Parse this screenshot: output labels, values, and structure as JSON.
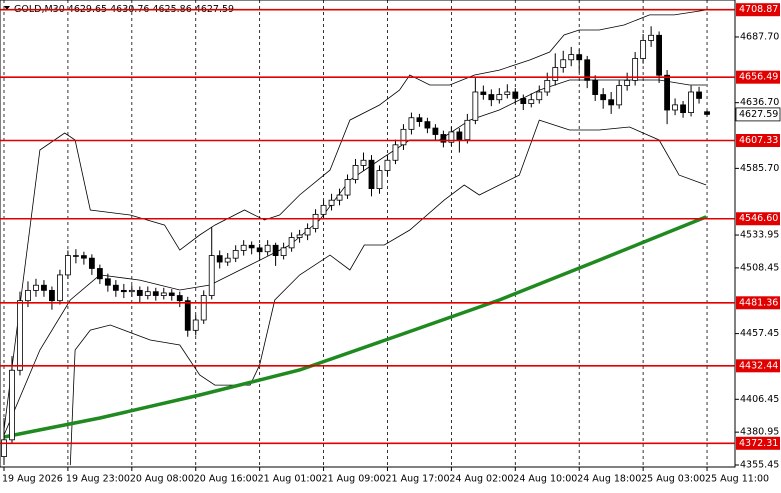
{
  "chart_data": {
    "type": "candlestick",
    "symbol": "GOLD,M30",
    "xlim": [
      -0.5,
      91.5
    ],
    "ylim": [
      4353.9,
      4716.4
    ],
    "xticks": [
      {
        "value": 0,
        "label": "19 Aug 2026"
      },
      {
        "value": 8,
        "label": "19 Aug 23:00"
      },
      {
        "value": 16,
        "label": "20 Aug 08:00"
      },
      {
        "value": 24,
        "label": "20 Aug 16:00"
      },
      {
        "value": 32,
        "label": "21 Aug 01:00"
      },
      {
        "value": 40,
        "label": "21 Aug 09:00"
      },
      {
        "value": 48,
        "label": "21 Aug 17:00"
      },
      {
        "value": 56,
        "label": "24 Aug 02:00"
      },
      {
        "value": 64,
        "label": "24 Aug 10:00"
      },
      {
        "value": 72,
        "label": "24 Aug 18:00"
      },
      {
        "value": 80,
        "label": "25 Aug 03:00"
      },
      {
        "value": 88,
        "label": "25 Aug 11:00"
      }
    ],
    "yticks": [
      4355.45,
      4380.95,
      4406.45,
      4457.45,
      4508.45,
      4533.95,
      {
        "value": 4585.7,
        "label": "4585.70"
      },
      {
        "value": 4636.7,
        "label": "4636.70"
      },
      {
        "value": 4687.7,
        "label": "4687.70"
      }
    ],
    "vgrid": true,
    "level_color": "#e00000",
    "levels": [
      4708.87,
      4656.49,
      4607.33,
      {
        "value": 4546.6,
        "label": "4546.60"
      },
      4481.36,
      4432.44,
      4372.31
    ],
    "candles": [
      [
        4362,
        4392,
        4355.5,
        4375
      ],
      [
        4375,
        4440,
        4372,
        4429
      ],
      [
        4429,
        4490,
        4425,
        4483
      ],
      [
        4483,
        4498,
        4478,
        4491
      ],
      [
        4491,
        4500,
        4486,
        4495
      ],
      [
        4495,
        4499,
        4486,
        4491
      ],
      [
        4491,
        4494,
        4476,
        4483
      ],
      [
        4483,
        4507,
        4480,
        4503
      ],
      [
        4503,
        4522,
        4500,
        4518
      ],
      [
        4518,
        4523,
        4512,
        4518
      ],
      [
        4518,
        4521,
        4511,
        4516
      ],
      [
        4516,
        4519,
        4503,
        4508
      ],
      [
        4508,
        4511,
        4496,
        4500
      ],
      [
        4500,
        4504,
        4490,
        4495
      ],
      [
        4495,
        4499,
        4486,
        4491
      ],
      [
        4491,
        4496,
        4485,
        4490
      ],
      [
        4490,
        4495,
        4486,
        4491
      ],
      [
        4491,
        4494,
        4482,
        4487
      ],
      [
        4487,
        4494,
        4484,
        4490
      ],
      [
        4490,
        4493,
        4483,
        4487
      ],
      [
        4487,
        4493,
        4484,
        4489
      ],
      [
        4489,
        4492,
        4483,
        4487
      ],
      [
        4487,
        4490,
        4478,
        4483
      ],
      [
        4483,
        4486,
        4455,
        4460
      ],
      [
        4460,
        4472,
        4456,
        4468
      ],
      [
        4468,
        4491,
        4465,
        4487
      ],
      [
        4487,
        4540,
        4484,
        4518
      ],
      [
        4518,
        4522,
        4508,
        4513
      ],
      [
        4513,
        4520,
        4510,
        4516
      ],
      [
        4516,
        4526,
        4513,
        4522
      ],
      [
        4522,
        4530,
        4518,
        4526
      ],
      [
        4526,
        4529,
        4519,
        4524
      ],
      [
        4524,
        4527,
        4515,
        4521
      ],
      [
        4521,
        4530,
        4518,
        4526
      ],
      [
        4526,
        4528,
        4510,
        4518
      ],
      [
        4518,
        4528,
        4515,
        4524
      ],
      [
        4524,
        4536,
        4521,
        4532
      ],
      [
        4532,
        4538,
        4528,
        4534
      ],
      [
        4534,
        4543,
        4530,
        4539
      ],
      [
        4539,
        4554,
        4536,
        4550
      ],
      [
        4550,
        4561,
        4546,
        4557
      ],
      [
        4557,
        4566,
        4553,
        4561
      ],
      [
        4561,
        4570,
        4557,
        4565
      ],
      [
        4565,
        4581,
        4562,
        4577
      ],
      [
        4577,
        4593,
        4574,
        4588
      ],
      [
        4588,
        4598,
        4584,
        4592
      ],
      [
        4592,
        4596,
        4564,
        4570
      ],
      [
        4570,
        4588,
        4566,
        4584
      ],
      [
        4584,
        4596,
        4580,
        4592
      ],
      [
        4592,
        4608,
        4589,
        4604
      ],
      [
        4604,
        4620,
        4600,
        4616
      ],
      [
        4616,
        4629,
        4612,
        4625
      ],
      [
        4625,
        4628,
        4618,
        4622
      ],
      [
        4622,
        4625,
        4613,
        4617
      ],
      [
        4617,
        4620,
        4608,
        4612
      ],
      [
        4612,
        4615,
        4602,
        4606
      ],
      [
        4606,
        4618,
        4603,
        4614
      ],
      [
        4614,
        4617,
        4598,
        4608
      ],
      [
        4608,
        4628,
        4605,
        4623
      ],
      [
        4623,
        4656,
        4620,
        4645
      ],
      [
        4645,
        4650,
        4639,
        4643
      ],
      [
        4643,
        4647,
        4634,
        4639
      ],
      [
        4639,
        4648,
        4636,
        4643
      ],
      [
        4643,
        4651,
        4640,
        4645
      ],
      [
        4645,
        4648,
        4636,
        4640
      ],
      [
        4640,
        4643,
        4631,
        4636
      ],
      [
        4636,
        4644,
        4633,
        4639
      ],
      [
        4639,
        4650,
        4636,
        4645
      ],
      [
        4645,
        4660,
        4642,
        4654
      ],
      [
        4654,
        4675,
        4650,
        4664
      ],
      [
        4664,
        4677,
        4660,
        4670
      ],
      [
        4670,
        4680,
        4665,
        4674
      ],
      [
        4674,
        4678,
        4660,
        4670
      ],
      [
        4670,
        4673,
        4648,
        4654
      ],
      [
        4654,
        4658,
        4638,
        4643
      ],
      [
        4643,
        4648,
        4632,
        4639
      ],
      [
        4639,
        4645,
        4628,
        4635
      ],
      [
        4635,
        4654,
        4632,
        4650
      ],
      [
        4650,
        4660,
        4646,
        4654
      ],
      [
        4654,
        4676,
        4650,
        4671
      ],
      [
        4671,
        4690,
        4667,
        4685
      ],
      [
        4685,
        4696,
        4680,
        4689
      ],
      [
        4689,
        4692,
        4652,
        4658
      ],
      [
        4658,
        4662,
        4620,
        4631
      ],
      [
        4631,
        4640,
        4627,
        4635
      ],
      [
        4635,
        4638,
        4625,
        4629
      ],
      [
        4629,
        4650,
        4626,
        4645
      ],
      [
        4645,
        4649,
        4636,
        4640
      ],
      [
        4629.65,
        4630.76,
        4625.86,
        4627.59
      ]
    ],
    "indicators": [
      {
        "color": "#000000",
        "width": 0.8,
        "x": [
          0,
          4.5,
          7.6,
          8.9,
          10.8,
          15.8,
          20.1,
          22,
          24.5,
          26.4,
          30.1,
          32.6,
          34.5,
          37,
          40.8,
          43.3,
          47,
          49.5,
          50.8,
          53.3,
          55.8,
          58.9,
          62,
          65.8,
          68.3,
          70.1,
          72,
          74.5,
          77.6,
          80.8,
          83.9,
          87.9
        ],
        "values": [
          4382.6,
          4600,
          4613.2,
          4607.7,
          4553.4,
          4549.5,
          4541.7,
          4522.3,
          4534,
          4541.7,
          4553.4,
          4545.6,
          4549.5,
          4565,
          4584.4,
          4623.2,
          4634.9,
          4646.5,
          4658.2,
          4650.4,
          4650.4,
          4658.2,
          4662,
          4669.8,
          4676,
          4689.2,
          4693.1,
          4693.1,
          4697,
          4704.8,
          4704.8,
          4708.6
        ]
      },
      {
        "color": "#000000",
        "width": 0.8,
        "x": [
          0,
          4.5,
          8.3,
          12,
          17,
          22,
          25.8,
          30.8,
          35.8,
          39.5,
          43.3,
          47,
          50.8,
          54.5,
          58.3,
          62,
          67,
          70.8,
          74.5,
          78.3,
          82,
          85.8,
          87.9
        ],
        "values": [
          4378.7,
          4444.7,
          4483.5,
          4503,
          4499,
          4491.3,
          4495.2,
          4510.7,
          4526.2,
          4545.6,
          4576.7,
          4592.2,
          4607.7,
          4607.7,
          4623.2,
          4631,
          4646.5,
          4654.3,
          4654.3,
          4654.3,
          4654.3,
          4650.4,
          4650.4
        ]
      },
      {
        "color": "#000000",
        "width": 0.8,
        "x": [
          8.3,
          8.9,
          10.8,
          13.3,
          18.3,
          22,
          24.5,
          26.4,
          30.8,
          32,
          33.9,
          37,
          40.8,
          43.3,
          45.1,
          47.6,
          50.8,
          55.1,
          57.6,
          59.5,
          64.5,
          67,
          70.8,
          74.5,
          78.3,
          82,
          84.5,
          87.9
        ],
        "values": [
          4355.4,
          4444.7,
          4460.2,
          4464.1,
          4452.5,
          4448.6,
          4425.3,
          4417.5,
          4417.5,
          4433,
          4483.5,
          4502.9,
          4518.4,
          4506.8,
          4526.2,
          4526.2,
          4537.9,
          4561.1,
          4572.8,
          4565,
          4580.5,
          4623.2,
          4615.5,
          4615.5,
          4617.8,
          4607.7,
          4580.5,
          4572.8
        ]
      },
      {
        "color": "#1f8a1f",
        "width": 3.5,
        "x": [
          0,
          12,
          24.5,
          37,
          49.5,
          62,
          74.5,
          87.9
        ],
        "values": [
          4377.2,
          4391.9,
          4409.8,
          4429.2,
          4456.3,
          4483.5,
          4514.5,
          4548
        ]
      }
    ]
  }
}
